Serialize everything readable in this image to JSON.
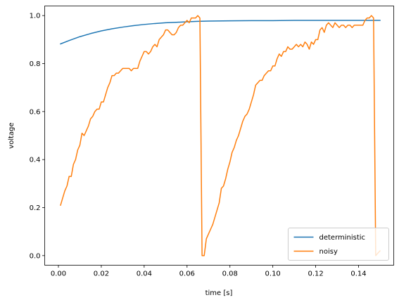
{
  "chart_data": {
    "type": "line",
    "xlabel": "time [s]",
    "ylabel": "voltage",
    "xlim": [
      -0.0064,
      0.1564
    ],
    "ylim": [
      -0.04,
      1.04
    ],
    "xticks": [
      0.0,
      0.02,
      0.04,
      0.06,
      0.08,
      0.1,
      0.12,
      0.14
    ],
    "xtick_labels": [
      "0.00",
      "0.02",
      "0.04",
      "0.06",
      "0.08",
      "0.10",
      "0.12",
      "0.14"
    ],
    "yticks": [
      0.0,
      0.2,
      0.4,
      0.6,
      0.8,
      1.0
    ],
    "ytick_labels": [
      "0.0",
      "0.2",
      "0.4",
      "0.6",
      "0.8",
      "1.0"
    ],
    "grid": false,
    "legend_position": "lower-right",
    "series": [
      {
        "name": "deterministic",
        "color": "#1f77b4",
        "points": [
          [
            0.001,
            0.882
          ],
          [
            0.005,
            0.896
          ],
          [
            0.01,
            0.912
          ],
          [
            0.015,
            0.925
          ],
          [
            0.02,
            0.936
          ],
          [
            0.025,
            0.945
          ],
          [
            0.03,
            0.952
          ],
          [
            0.035,
            0.958
          ],
          [
            0.04,
            0.963
          ],
          [
            0.045,
            0.967
          ],
          [
            0.05,
            0.97
          ],
          [
            0.055,
            0.972
          ],
          [
            0.06,
            0.974
          ],
          [
            0.065,
            0.976
          ],
          [
            0.07,
            0.977
          ],
          [
            0.08,
            0.978
          ],
          [
            0.09,
            0.979
          ],
          [
            0.1,
            0.979
          ],
          [
            0.11,
            0.98
          ],
          [
            0.12,
            0.98
          ],
          [
            0.13,
            0.98
          ],
          [
            0.14,
            0.98
          ],
          [
            0.15,
            0.98
          ]
        ]
      },
      {
        "name": "noisy",
        "color": "#ff7f0e",
        "points": [
          [
            0.001,
            0.21
          ],
          [
            0.002,
            0.24
          ],
          [
            0.003,
            0.27
          ],
          [
            0.004,
            0.29
          ],
          [
            0.005,
            0.33
          ],
          [
            0.006,
            0.33
          ],
          [
            0.007,
            0.38
          ],
          [
            0.008,
            0.4
          ],
          [
            0.009,
            0.44
          ],
          [
            0.01,
            0.46
          ],
          [
            0.011,
            0.51
          ],
          [
            0.012,
            0.5
          ],
          [
            0.013,
            0.52
          ],
          [
            0.014,
            0.54
          ],
          [
            0.015,
            0.57
          ],
          [
            0.016,
            0.58
          ],
          [
            0.017,
            0.6
          ],
          [
            0.018,
            0.61
          ],
          [
            0.019,
            0.61
          ],
          [
            0.02,
            0.64
          ],
          [
            0.021,
            0.64
          ],
          [
            0.022,
            0.67
          ],
          [
            0.023,
            0.7
          ],
          [
            0.024,
            0.72
          ],
          [
            0.025,
            0.75
          ],
          [
            0.026,
            0.75
          ],
          [
            0.027,
            0.76
          ],
          [
            0.028,
            0.76
          ],
          [
            0.029,
            0.77
          ],
          [
            0.03,
            0.78
          ],
          [
            0.031,
            0.78
          ],
          [
            0.032,
            0.78
          ],
          [
            0.033,
            0.78
          ],
          [
            0.034,
            0.77
          ],
          [
            0.035,
            0.78
          ],
          [
            0.036,
            0.78
          ],
          [
            0.037,
            0.78
          ],
          [
            0.038,
            0.81
          ],
          [
            0.039,
            0.83
          ],
          [
            0.04,
            0.85
          ],
          [
            0.041,
            0.85
          ],
          [
            0.042,
            0.84
          ],
          [
            0.043,
            0.85
          ],
          [
            0.044,
            0.87
          ],
          [
            0.045,
            0.88
          ],
          [
            0.046,
            0.87
          ],
          [
            0.047,
            0.9
          ],
          [
            0.048,
            0.91
          ],
          [
            0.049,
            0.92
          ],
          [
            0.05,
            0.94
          ],
          [
            0.051,
            0.94
          ],
          [
            0.052,
            0.93
          ],
          [
            0.053,
            0.92
          ],
          [
            0.054,
            0.92
          ],
          [
            0.055,
            0.93
          ],
          [
            0.056,
            0.95
          ],
          [
            0.057,
            0.96
          ],
          [
            0.058,
            0.96
          ],
          [
            0.059,
            0.97
          ],
          [
            0.06,
            0.98
          ],
          [
            0.061,
            0.97
          ],
          [
            0.062,
            0.99
          ],
          [
            0.063,
            0.99
          ],
          [
            0.064,
            0.99
          ],
          [
            0.065,
            1.0
          ],
          [
            0.066,
            0.99
          ],
          [
            0.0665,
            0.5
          ],
          [
            0.067,
            0.0
          ],
          [
            0.068,
            0.0
          ],
          [
            0.069,
            0.07
          ],
          [
            0.07,
            0.09
          ],
          [
            0.071,
            0.11
          ],
          [
            0.072,
            0.13
          ],
          [
            0.073,
            0.16
          ],
          [
            0.074,
            0.19
          ],
          [
            0.075,
            0.22
          ],
          [
            0.076,
            0.28
          ],
          [
            0.077,
            0.29
          ],
          [
            0.078,
            0.32
          ],
          [
            0.079,
            0.36
          ],
          [
            0.08,
            0.39
          ],
          [
            0.081,
            0.43
          ],
          [
            0.082,
            0.45
          ],
          [
            0.083,
            0.48
          ],
          [
            0.084,
            0.5
          ],
          [
            0.085,
            0.53
          ],
          [
            0.086,
            0.56
          ],
          [
            0.087,
            0.58
          ],
          [
            0.088,
            0.59
          ],
          [
            0.089,
            0.61
          ],
          [
            0.09,
            0.64
          ],
          [
            0.091,
            0.67
          ],
          [
            0.092,
            0.71
          ],
          [
            0.093,
            0.72
          ],
          [
            0.094,
            0.73
          ],
          [
            0.095,
            0.73
          ],
          [
            0.096,
            0.75
          ],
          [
            0.097,
            0.76
          ],
          [
            0.098,
            0.77
          ],
          [
            0.099,
            0.77
          ],
          [
            0.1,
            0.79
          ],
          [
            0.101,
            0.79
          ],
          [
            0.102,
            0.82
          ],
          [
            0.103,
            0.84
          ],
          [
            0.104,
            0.83
          ],
          [
            0.105,
            0.85
          ],
          [
            0.106,
            0.85
          ],
          [
            0.107,
            0.87
          ],
          [
            0.108,
            0.86
          ],
          [
            0.109,
            0.86
          ],
          [
            0.11,
            0.87
          ],
          [
            0.111,
            0.88
          ],
          [
            0.112,
            0.87
          ],
          [
            0.113,
            0.88
          ],
          [
            0.114,
            0.87
          ],
          [
            0.115,
            0.89
          ],
          [
            0.116,
            0.88
          ],
          [
            0.117,
            0.86
          ],
          [
            0.118,
            0.89
          ],
          [
            0.119,
            0.88
          ],
          [
            0.12,
            0.9
          ],
          [
            0.121,
            0.9
          ],
          [
            0.122,
            0.94
          ],
          [
            0.123,
            0.95
          ],
          [
            0.124,
            0.93
          ],
          [
            0.125,
            0.96
          ],
          [
            0.126,
            0.97
          ],
          [
            0.127,
            0.96
          ],
          [
            0.128,
            0.95
          ],
          [
            0.129,
            0.97
          ],
          [
            0.13,
            0.96
          ],
          [
            0.131,
            0.95
          ],
          [
            0.132,
            0.96
          ],
          [
            0.133,
            0.96
          ],
          [
            0.134,
            0.95
          ],
          [
            0.135,
            0.96
          ],
          [
            0.136,
            0.96
          ],
          [
            0.137,
            0.95
          ],
          [
            0.138,
            0.96
          ],
          [
            0.139,
            0.96
          ],
          [
            0.14,
            0.96
          ],
          [
            0.141,
            0.96
          ],
          [
            0.142,
            0.96
          ],
          [
            0.143,
            0.98
          ],
          [
            0.144,
            0.99
          ],
          [
            0.145,
            0.99
          ],
          [
            0.146,
            1.0
          ],
          [
            0.147,
            0.99
          ],
          [
            0.1475,
            0.5
          ],
          [
            0.148,
            0.0
          ],
          [
            0.149,
            0.01
          ],
          [
            0.15,
            0.02
          ]
        ]
      }
    ]
  }
}
